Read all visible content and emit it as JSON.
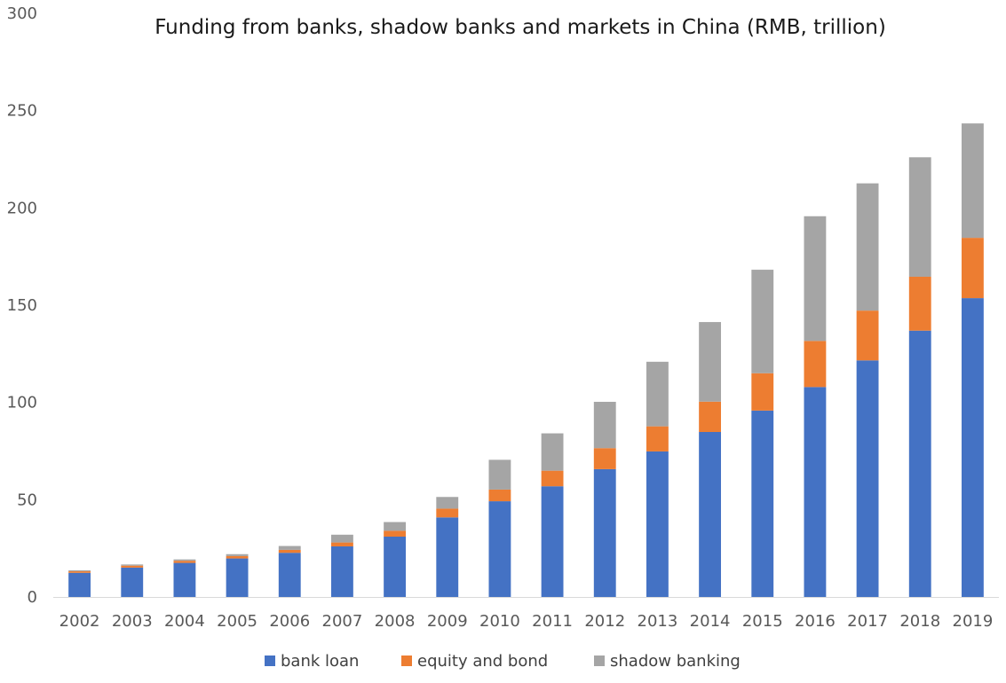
{
  "chart_data": {
    "type": "bar",
    "stacked": true,
    "title": "Funding from banks, shadow banks and markets in China (RMB, trillion)",
    "xlabel": "",
    "ylabel": "",
    "ylim": [
      0,
      300
    ],
    "y_ticks": [
      0,
      50,
      100,
      150,
      200,
      250,
      300
    ],
    "grid": false,
    "legend_position": "bottom",
    "categories": [
      "2002",
      "2003",
      "2004",
      "2005",
      "2006",
      "2007",
      "2008",
      "2009",
      "2010",
      "2011",
      "2012",
      "2013",
      "2014",
      "2015",
      "2016",
      "2017",
      "2018",
      "2019"
    ],
    "series": [
      {
        "name": "bank loan",
        "color": "#4472c4",
        "values": [
          12.4,
          15.1,
          17.5,
          19.8,
          22.7,
          26.0,
          31.0,
          40.9,
          49.2,
          56.9,
          65.7,
          74.8,
          84.8,
          95.8,
          107.9,
          121.6,
          136.9,
          153.6
        ]
      },
      {
        "name": "equity and bond",
        "color": "#ed7d31",
        "values": [
          0.8,
          1.0,
          1.1,
          1.2,
          1.5,
          2.0,
          3.0,
          4.5,
          6.0,
          8.0,
          10.8,
          12.9,
          15.6,
          19.2,
          23.7,
          25.6,
          27.7,
          31.0
        ]
      },
      {
        "name": "shadow banking",
        "color": "#a5a5a5",
        "values": [
          0.5,
          0.6,
          0.7,
          1.0,
          2.0,
          4.0,
          4.5,
          6.0,
          15.3,
          19.2,
          23.8,
          33.2,
          40.9,
          53.2,
          64.1,
          65.4,
          61.4,
          58.8
        ]
      }
    ]
  }
}
